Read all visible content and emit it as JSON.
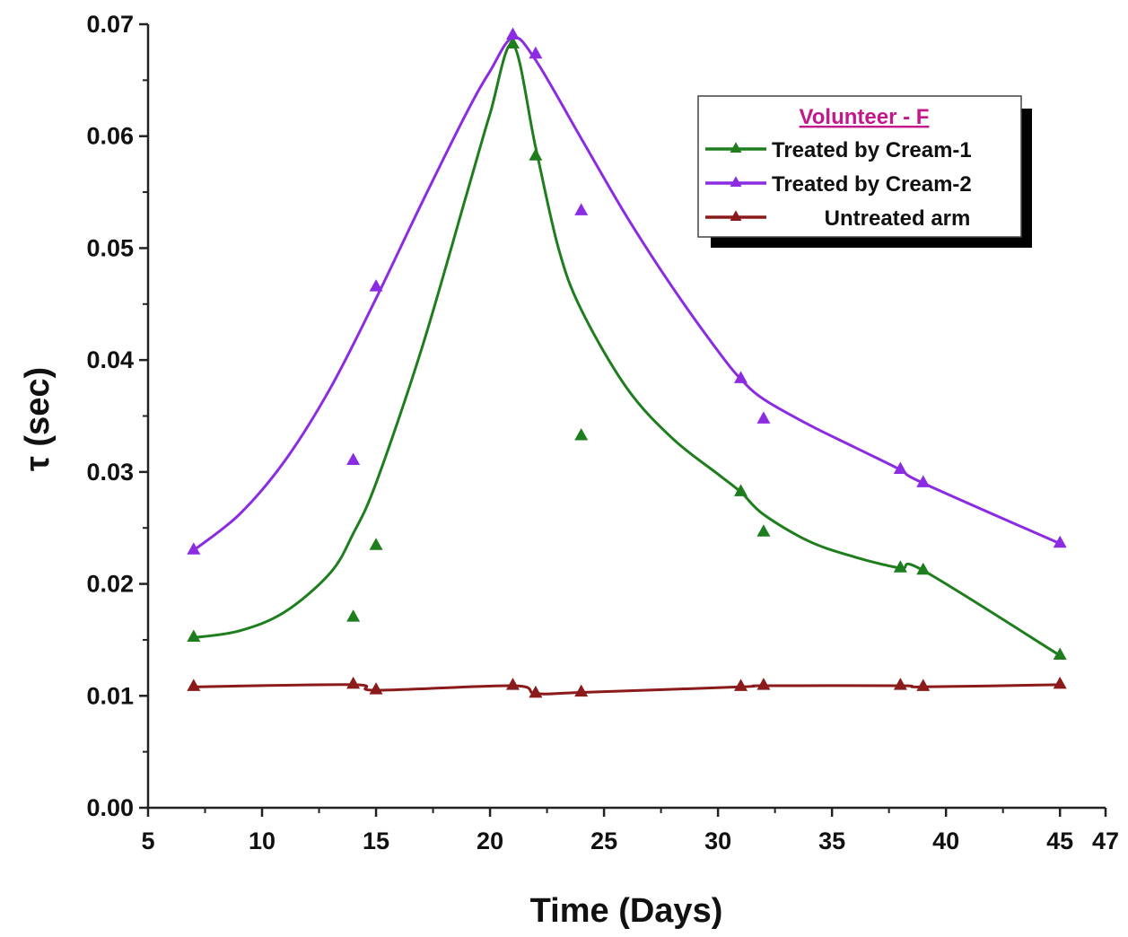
{
  "chart_data": {
    "type": "line",
    "title": "",
    "xlabel": "Time (Days)",
    "ylabel": "τ (sec)",
    "xlim": [
      5,
      47
    ],
    "ylim": [
      0,
      0.07
    ],
    "xticks": [
      5,
      10,
      15,
      20,
      25,
      30,
      35,
      40,
      45,
      47
    ],
    "xtick_labels": [
      "5",
      "10",
      "15",
      "20",
      "25",
      "30",
      "35",
      "40",
      "45",
      "47"
    ],
    "yticks": [
      0,
      0.01,
      0.02,
      0.03,
      0.04,
      0.05,
      0.06,
      0.07
    ],
    "ytick_labels": [
      "0.00",
      "0.01",
      "0.02",
      "0.03",
      "0.04",
      "0.05",
      "0.06",
      "0.07"
    ],
    "legend": {
      "title": "Volunteer - F",
      "title_color": "#c2188b",
      "placement": "top-right"
    },
    "series": [
      {
        "name": "Treated by Cream-1",
        "color": "#1e7e1e",
        "points": [
          [
            7,
            0.0152
          ],
          [
            14,
            0.017
          ],
          [
            15,
            0.0234
          ],
          [
            21,
            0.0682
          ],
          [
            22,
            0.0582
          ],
          [
            24,
            0.0332
          ],
          [
            31,
            0.0282
          ],
          [
            32,
            0.0246
          ],
          [
            38,
            0.0214
          ],
          [
            39,
            0.0212
          ],
          [
            45,
            0.0136
          ]
        ],
        "curve": [
          [
            7,
            0.0152
          ],
          [
            9,
            0.0158
          ],
          [
            11,
            0.0175
          ],
          [
            13,
            0.021
          ],
          [
            14,
            0.0245
          ],
          [
            15,
            0.029
          ],
          [
            17,
            0.041
          ],
          [
            19,
            0.055
          ],
          [
            20,
            0.062
          ],
          [
            21,
            0.0682
          ],
          [
            22,
            0.059
          ],
          [
            23,
            0.05
          ],
          [
            24,
            0.0445
          ],
          [
            26,
            0.0375
          ],
          [
            28,
            0.033
          ],
          [
            30,
            0.0298
          ],
          [
            31,
            0.0282
          ],
          [
            32,
            0.0262
          ],
          [
            34,
            0.0238
          ],
          [
            36,
            0.0224
          ],
          [
            38,
            0.0214
          ],
          [
            39,
            0.0212
          ],
          [
            45,
            0.0136
          ]
        ]
      },
      {
        "name": "Treated by Cream-2",
        "color": "#8b2be2",
        "points": [
          [
            7,
            0.023
          ],
          [
            14,
            0.031
          ],
          [
            15,
            0.0465
          ],
          [
            21,
            0.069
          ],
          [
            22,
            0.0673
          ],
          [
            24,
            0.0533
          ],
          [
            31,
            0.0383
          ],
          [
            32,
            0.0347
          ],
          [
            38,
            0.0302
          ],
          [
            39,
            0.029
          ],
          [
            45,
            0.0236
          ]
        ],
        "curve": [
          [
            7,
            0.023
          ],
          [
            9,
            0.0262
          ],
          [
            11,
            0.031
          ],
          [
            13,
            0.0375
          ],
          [
            15,
            0.0455
          ],
          [
            17,
            0.054
          ],
          [
            19,
            0.0622
          ],
          [
            20,
            0.0658
          ],
          [
            21,
            0.0688
          ],
          [
            22,
            0.0668
          ],
          [
            24,
            0.0598
          ],
          [
            26,
            0.0528
          ],
          [
            28,
            0.0465
          ],
          [
            30,
            0.0408
          ],
          [
            31,
            0.0383
          ],
          [
            32,
            0.0365
          ],
          [
            34,
            0.0342
          ],
          [
            36,
            0.0322
          ],
          [
            38,
            0.0302
          ],
          [
            39,
            0.029
          ],
          [
            45,
            0.0236
          ]
        ]
      },
      {
        "name": "Untreated arm",
        "color": "#8b1a1a",
        "points": [
          [
            7,
            0.0108
          ],
          [
            14,
            0.011
          ],
          [
            15,
            0.0105
          ],
          [
            21,
            0.0109
          ],
          [
            22,
            0.0102
          ],
          [
            24,
            0.0103
          ],
          [
            31,
            0.0108
          ],
          [
            32,
            0.0109
          ],
          [
            38,
            0.0109
          ],
          [
            39,
            0.0108
          ],
          [
            45,
            0.011
          ]
        ],
        "curve": [
          [
            7,
            0.0108
          ],
          [
            14,
            0.011
          ],
          [
            15,
            0.0105
          ],
          [
            21,
            0.0109
          ],
          [
            22,
            0.0102
          ],
          [
            24,
            0.0103
          ],
          [
            31,
            0.0108
          ],
          [
            32,
            0.0109
          ],
          [
            38,
            0.0109
          ],
          [
            39,
            0.0108
          ],
          [
            45,
            0.011
          ]
        ]
      }
    ]
  }
}
